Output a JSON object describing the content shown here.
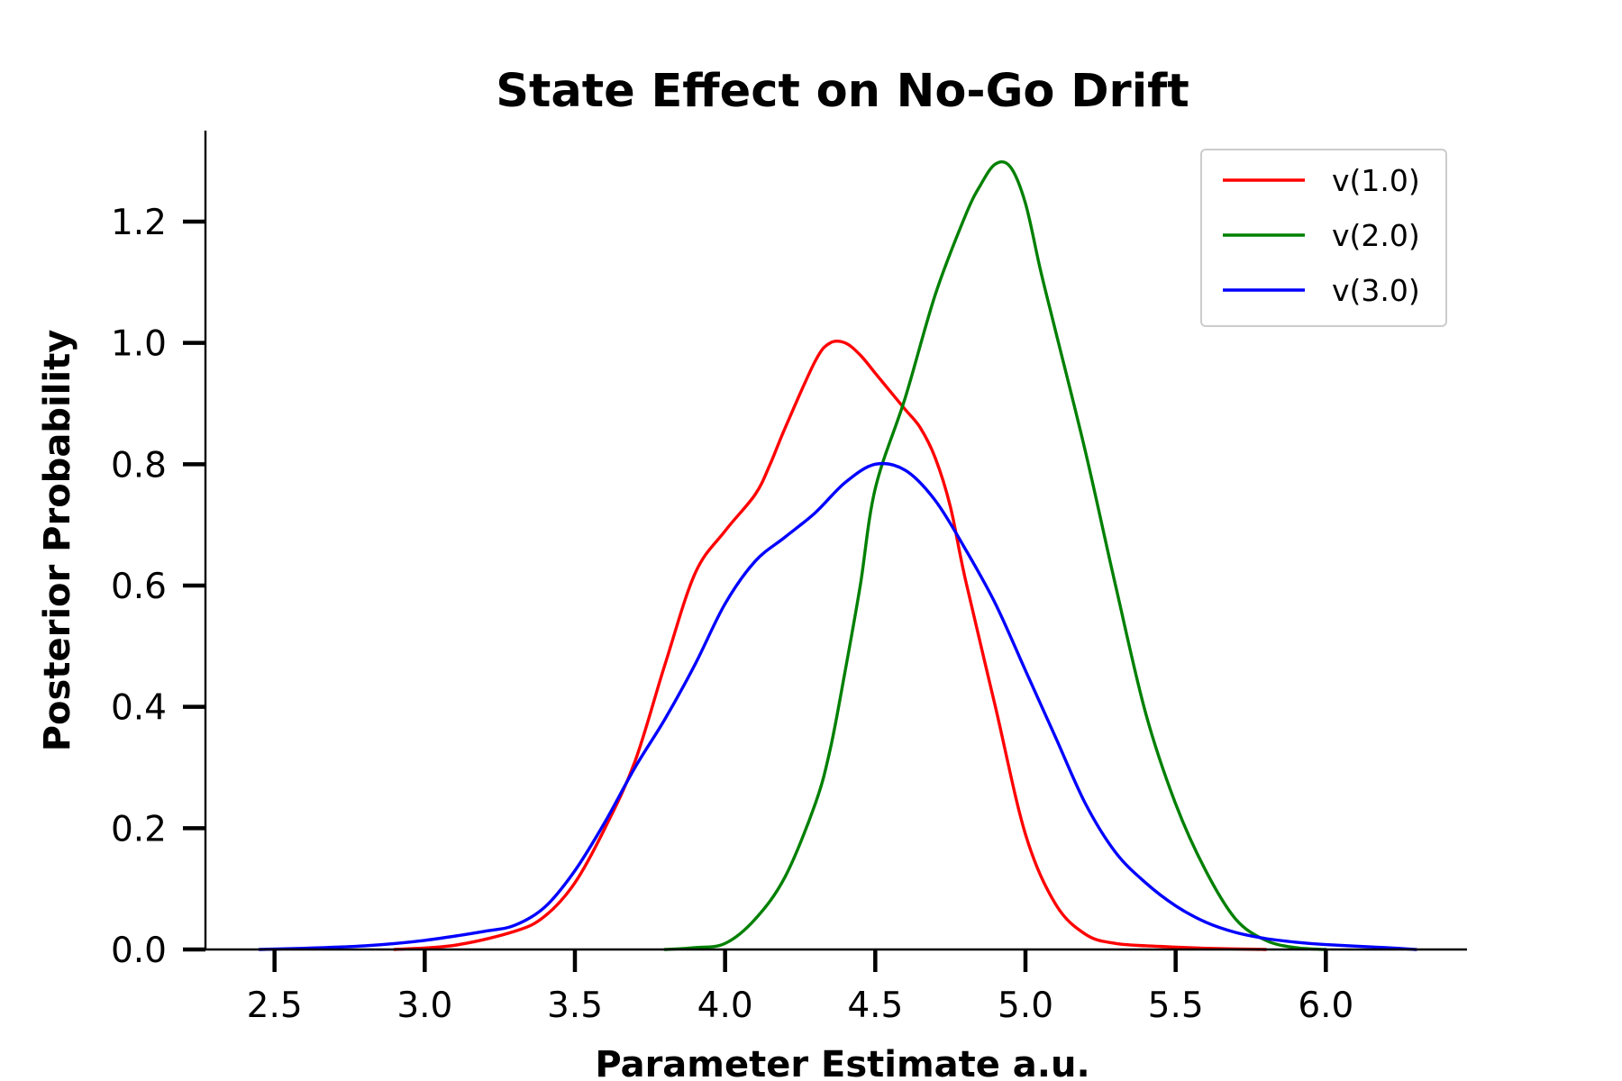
{
  "chart_data": {
    "type": "line",
    "title": "State Effect on No-Go Drift",
    "xlabel": "Parameter Estimate a.u.",
    "ylabel": "Posterior Probability",
    "xlim": [
      2.27,
      6.47
    ],
    "ylim": [
      0.0,
      1.35
    ],
    "xticks": [
      2.5,
      3.0,
      3.5,
      4.0,
      4.5,
      5.0,
      5.5,
      6.0
    ],
    "xtick_labels": [
      "2.5",
      "3.0",
      "3.5",
      "4.0",
      "4.5",
      "5.0",
      "5.5",
      "6.0"
    ],
    "yticks": [
      0.0,
      0.2,
      0.4,
      0.6,
      0.8,
      1.0,
      1.2
    ],
    "ytick_labels": [
      "0.0",
      "0.2",
      "0.4",
      "0.6",
      "0.8",
      "1.0",
      "1.2"
    ],
    "grid": false,
    "legend_position": "top-right",
    "series": [
      {
        "name": "v(1.0)",
        "color": "#ff0000",
        "x": [
          2.9,
          3.1,
          3.3,
          3.4,
          3.5,
          3.6,
          3.7,
          3.8,
          3.9,
          4.0,
          4.1,
          4.15,
          4.2,
          4.3,
          4.35,
          4.4,
          4.45,
          4.5,
          4.55,
          4.6,
          4.65,
          4.7,
          4.75,
          4.8,
          4.9,
          5.0,
          5.1,
          5.2,
          5.3,
          5.45,
          5.6,
          5.8
        ],
        "y": [
          0.0,
          0.007,
          0.03,
          0.055,
          0.11,
          0.2,
          0.31,
          0.47,
          0.62,
          0.69,
          0.75,
          0.8,
          0.86,
          0.97,
          1.0,
          1.0,
          0.98,
          0.95,
          0.92,
          0.89,
          0.86,
          0.81,
          0.73,
          0.61,
          0.4,
          0.19,
          0.075,
          0.025,
          0.01,
          0.005,
          0.002,
          0.0
        ]
      },
      {
        "name": "v(2.0)",
        "color": "#008000",
        "x": [
          3.8,
          3.9,
          4.0,
          4.1,
          4.2,
          4.3,
          4.35,
          4.4,
          4.45,
          4.5,
          4.6,
          4.7,
          4.8,
          4.85,
          4.9,
          4.95,
          5.0,
          5.05,
          5.1,
          5.2,
          5.3,
          5.4,
          5.5,
          5.6,
          5.7,
          5.8,
          5.9,
          6.0
        ],
        "y": [
          0.0,
          0.003,
          0.01,
          0.05,
          0.12,
          0.24,
          0.33,
          0.46,
          0.6,
          0.76,
          0.91,
          1.08,
          1.21,
          1.26,
          1.295,
          1.29,
          1.23,
          1.12,
          1.02,
          0.82,
          0.6,
          0.39,
          0.24,
          0.13,
          0.05,
          0.015,
          0.003,
          0.0
        ]
      },
      {
        "name": "v(3.0)",
        "color": "#0000ff",
        "x": [
          2.45,
          2.6,
          2.8,
          3.0,
          3.2,
          3.3,
          3.4,
          3.5,
          3.6,
          3.7,
          3.8,
          3.9,
          4.0,
          4.1,
          4.2,
          4.3,
          4.4,
          4.5,
          4.6,
          4.7,
          4.8,
          4.9,
          5.0,
          5.1,
          5.2,
          5.3,
          5.4,
          5.5,
          5.6,
          5.7,
          5.8,
          5.9,
          6.0,
          6.2,
          6.3
        ],
        "y": [
          0.0,
          0.002,
          0.006,
          0.015,
          0.03,
          0.04,
          0.07,
          0.13,
          0.21,
          0.3,
          0.38,
          0.47,
          0.57,
          0.64,
          0.68,
          0.72,
          0.77,
          0.8,
          0.79,
          0.74,
          0.66,
          0.57,
          0.46,
          0.35,
          0.24,
          0.16,
          0.11,
          0.072,
          0.045,
          0.028,
          0.018,
          0.012,
          0.008,
          0.003,
          0.0
        ]
      }
    ]
  }
}
